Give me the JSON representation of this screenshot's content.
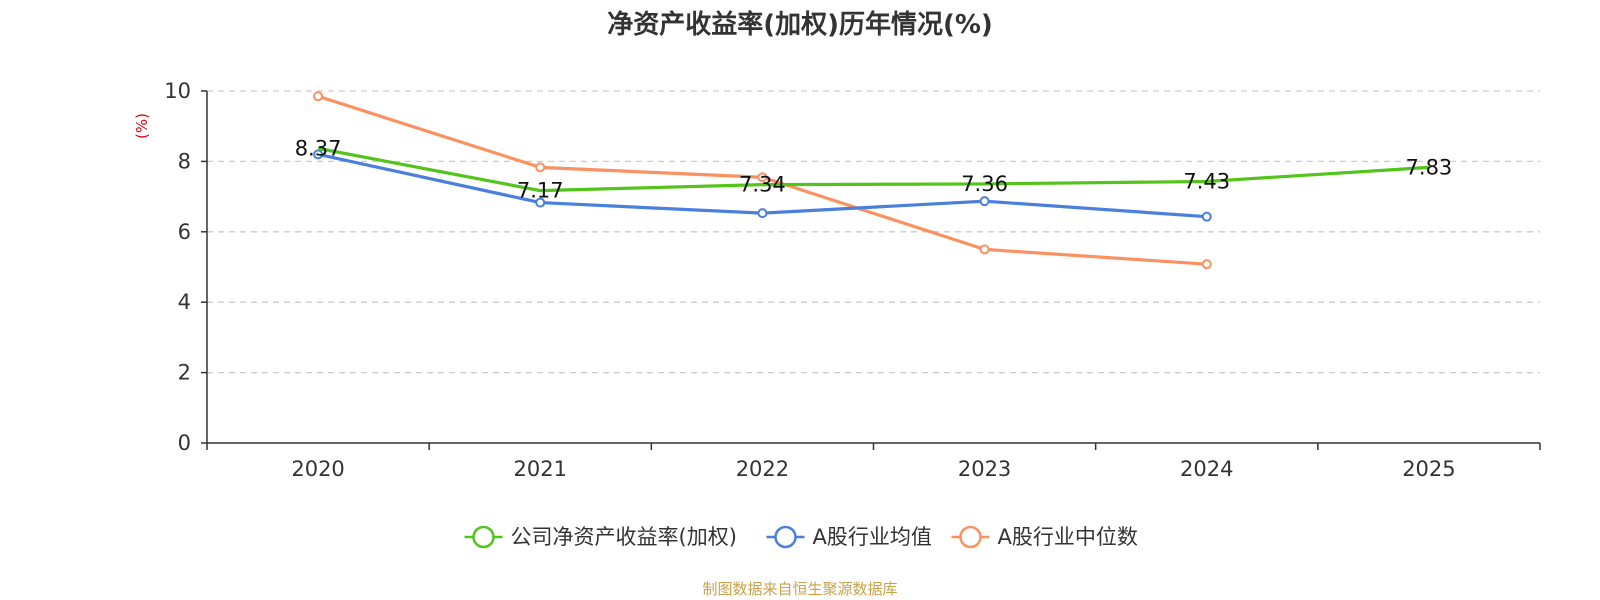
{
  "chart_data": {
    "type": "line",
    "title": "净资产收益率(加权)历年情况(%)",
    "unit_label": "(%)",
    "categories": [
      "2020",
      "2021",
      "2022",
      "2023",
      "2024",
      "2025"
    ],
    "ylim": [
      0,
      10
    ],
    "yticks": [
      0,
      2,
      4,
      6,
      8,
      10
    ],
    "grid": true,
    "legend_position": "bottom",
    "series": [
      {
        "name": "公司净资产收益率(加权)",
        "color": "#52c41a",
        "values": [
          8.37,
          7.17,
          7.34,
          7.36,
          7.43,
          7.83
        ],
        "labels": [
          "8.37",
          "7.17",
          "7.34",
          "7.36",
          "7.43",
          "7.83"
        ],
        "show_markers": false
      },
      {
        "name": "A股行业均值",
        "color": "#4a7fdc",
        "values": [
          8.2,
          6.83,
          6.53,
          6.87,
          6.43,
          null
        ],
        "show_markers": true
      },
      {
        "name": "A股行业中位数",
        "color": "#fa9161",
        "values": [
          9.85,
          7.83,
          7.55,
          5.5,
          5.08,
          null
        ],
        "show_markers": true
      }
    ]
  },
  "footer": {
    "source": "制图数据来自恒生聚源数据库"
  }
}
